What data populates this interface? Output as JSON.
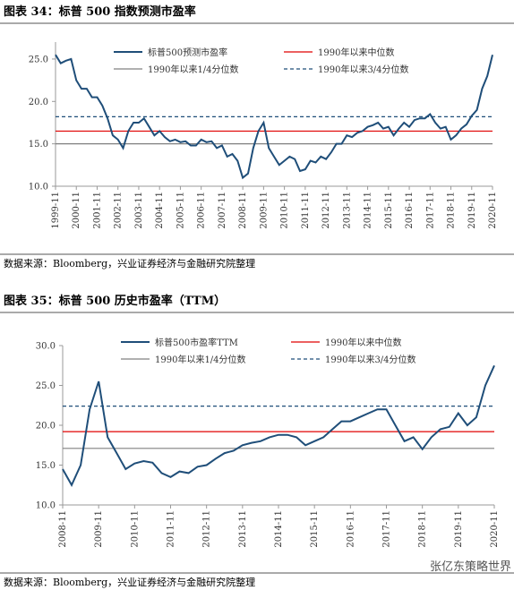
{
  "chart_data": [
    {
      "type": "line",
      "title": "图表 34：标普 500 指数预测市盈率",
      "note": "数据来源：Bloomberg，兴业证券经济与金融研究院整理",
      "x": [
        "1999-11",
        "2000-02",
        "2000-05",
        "2000-08",
        "2000-11",
        "2001-02",
        "2001-05",
        "2001-08",
        "2001-11",
        "2002-02",
        "2002-05",
        "2002-08",
        "2002-11",
        "2003-02",
        "2003-05",
        "2003-08",
        "2003-11",
        "2004-02",
        "2004-05",
        "2004-08",
        "2004-11",
        "2005-02",
        "2005-05",
        "2005-08",
        "2005-11",
        "2006-02",
        "2006-05",
        "2006-08",
        "2006-11",
        "2007-02",
        "2007-05",
        "2007-08",
        "2007-11",
        "2008-02",
        "2008-05",
        "2008-08",
        "2008-11",
        "2009-02",
        "2009-05",
        "2009-08",
        "2009-11",
        "2010-02",
        "2010-05",
        "2010-08",
        "2010-11",
        "2011-02",
        "2011-05",
        "2011-08",
        "2011-11",
        "2012-02",
        "2012-05",
        "2012-08",
        "2012-11",
        "2013-02",
        "2013-05",
        "2013-08",
        "2013-11",
        "2014-02",
        "2014-05",
        "2014-08",
        "2014-11",
        "2015-02",
        "2015-05",
        "2015-08",
        "2015-11",
        "2016-02",
        "2016-05",
        "2016-08",
        "2016-11",
        "2017-02",
        "2017-05",
        "2017-08",
        "2017-11",
        "2018-02",
        "2018-05",
        "2018-08",
        "2018-11",
        "2019-02",
        "2019-05",
        "2019-08",
        "2019-11",
        "2020-02",
        "2020-05",
        "2020-08",
        "2020-11"
      ],
      "series": [
        {
          "name": "标普500预测市盈率",
          "color": "#1f4e79",
          "values": [
            25.5,
            24.5,
            24.8,
            25.0,
            22.5,
            21.5,
            21.5,
            20.5,
            20.5,
            19.5,
            18.0,
            16.0,
            15.5,
            14.5,
            16.5,
            17.5,
            17.5,
            18.0,
            17.0,
            16.0,
            16.5,
            15.8,
            15.3,
            15.5,
            15.2,
            15.3,
            14.8,
            14.8,
            15.5,
            15.2,
            15.3,
            14.5,
            14.8,
            13.5,
            13.8,
            13.0,
            11.0,
            11.5,
            14.5,
            16.5,
            17.5,
            14.5,
            13.5,
            12.5,
            13.0,
            13.5,
            13.2,
            11.8,
            12.0,
            13.0,
            12.8,
            13.5,
            13.2,
            14.0,
            15.0,
            15.0,
            16.0,
            15.8,
            16.3,
            16.5,
            17.0,
            17.2,
            17.5,
            16.8,
            17.0,
            16.0,
            16.8,
            17.5,
            17.0,
            17.8,
            18.0,
            18.0,
            18.5,
            17.5,
            16.8,
            17.0,
            15.5,
            16.0,
            16.8,
            17.3,
            18.3,
            19.0,
            21.5,
            23.0,
            25.5
          ]
        }
      ],
      "reference_lines": [
        {
          "name": "1990年以来中位数",
          "color": "#e00000",
          "value": 16.5,
          "style": "solid"
        },
        {
          "name": "1990年以来1/4分位数",
          "color": "#808080",
          "value": 15.0,
          "style": "solid"
        },
        {
          "name": "1990年以来3/4分位数",
          "color": "#1f4e79",
          "value": 18.2,
          "style": "dashed"
        }
      ],
      "ylim": [
        10,
        27
      ],
      "yticks": [
        {
          "value": 10,
          "label": "10.0"
        },
        {
          "value": 15,
          "label": "15.0"
        },
        {
          "value": 20,
          "label": "20.0"
        },
        {
          "value": 25,
          "label": "25.0"
        }
      ],
      "xticks": [
        "1999-11",
        "2000-11",
        "2001-11",
        "2002-11",
        "2003-11",
        "2004-11",
        "2005-11",
        "2006-11",
        "2007-11",
        "2008-11",
        "2009-11",
        "2010-11",
        "2011-11",
        "2012-11",
        "2013-11",
        "2014-11",
        "2015-11",
        "2016-11",
        "2017-11",
        "2018-11",
        "2019-11",
        "2020-11"
      ]
    },
    {
      "type": "line",
      "title": "图表 35：标普 500 历史市盈率（TTM）",
      "note": "数据来源：Bloomberg，兴业证券经济与金融研究院整理",
      "x": [
        "2008-11",
        "2009-02",
        "2009-05",
        "2009-08",
        "2009-11",
        "2010-02",
        "2010-05",
        "2010-08",
        "2010-11",
        "2011-02",
        "2011-05",
        "2011-08",
        "2011-11",
        "2012-02",
        "2012-05",
        "2012-08",
        "2012-11",
        "2013-02",
        "2013-05",
        "2013-08",
        "2013-11",
        "2014-02",
        "2014-05",
        "2014-08",
        "2014-11",
        "2015-02",
        "2015-05",
        "2015-08",
        "2015-11",
        "2016-02",
        "2016-05",
        "2016-08",
        "2016-11",
        "2017-02",
        "2017-05",
        "2017-08",
        "2017-11",
        "2018-02",
        "2018-05",
        "2018-08",
        "2018-11",
        "2019-02",
        "2019-05",
        "2019-08",
        "2019-11",
        "2020-02",
        "2020-05",
        "2020-08",
        "2020-11"
      ],
      "series": [
        {
          "name": "标普500市盈率TTM",
          "color": "#1f4e79",
          "values": [
            14.5,
            12.5,
            15.0,
            22.0,
            25.5,
            18.5,
            16.5,
            14.5,
            15.2,
            15.5,
            15.3,
            14.0,
            13.5,
            14.2,
            14.0,
            14.8,
            15.0,
            15.8,
            16.5,
            16.8,
            17.5,
            17.8,
            18.0,
            18.5,
            18.8,
            18.8,
            18.5,
            17.5,
            18.0,
            18.5,
            19.5,
            20.5,
            20.5,
            21.0,
            21.5,
            22.0,
            22.0,
            20.0,
            18.0,
            18.5,
            17.0,
            18.5,
            19.5,
            19.8,
            21.5,
            20.0,
            21.0,
            25.0,
            27.5
          ]
        }
      ],
      "reference_lines": [
        {
          "name": "1990年以来中位数",
          "color": "#e00000",
          "value": 19.2,
          "style": "solid"
        },
        {
          "name": "1990年以来1/4分位数",
          "color": "#808080",
          "value": 17.1,
          "style": "solid"
        },
        {
          "name": "1990年以来3/4分位数",
          "color": "#1f4e79",
          "value": 22.4,
          "style": "dashed"
        }
      ],
      "ylim": [
        10,
        30
      ],
      "yticks": [
        {
          "value": 10,
          "label": "10.0"
        },
        {
          "value": 15,
          "label": "15.0"
        },
        {
          "value": 20,
          "label": "20.0"
        },
        {
          "value": 25,
          "label": "25.0"
        },
        {
          "value": 30,
          "label": "30.0"
        }
      ],
      "xticks": [
        "2008-11",
        "2009-11",
        "2010-11",
        "2011-11",
        "2012-11",
        "2013-11",
        "2014-11",
        "2015-11",
        "2016-11",
        "2017-11",
        "2018-11",
        "2019-11",
        "2020-11"
      ]
    }
  ],
  "watermark": "张亿东策略世界"
}
